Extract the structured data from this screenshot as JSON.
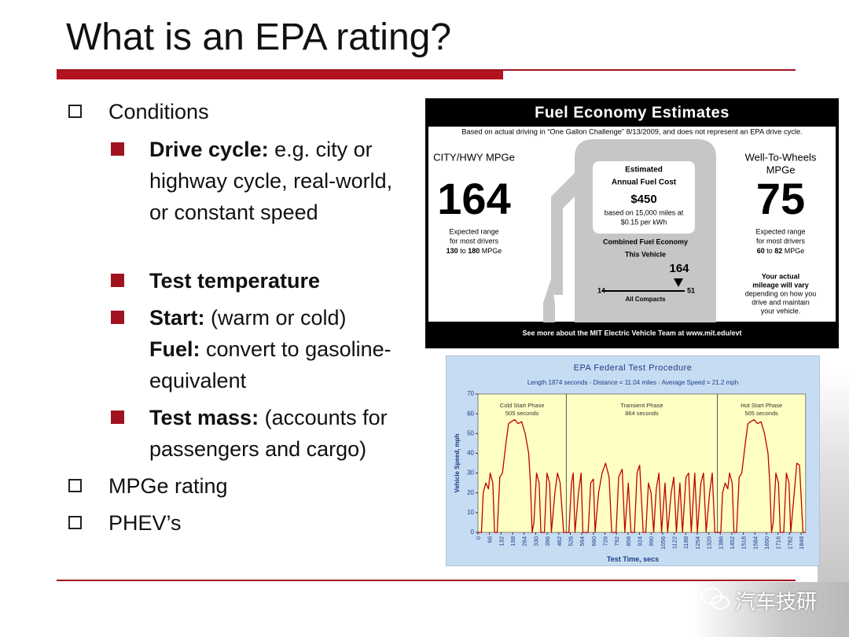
{
  "slide": {
    "title": "What is an EPA rating?",
    "bullets": [
      {
        "text": "Conditions",
        "sub": [
          {
            "bold": "Drive cycle:",
            "text": "e.g. city or highway cycle, real-world, or constant speed"
          },
          {
            "bold": "Test temperature"
          },
          {
            "bold": "Start:",
            "text": "(warm or cold)",
            "bold2": "Fuel:",
            "text2": "convert to gasoline-equivalent"
          },
          {
            "bold": "Test mass:",
            "text": "(accounts for passengers and cargo)"
          }
        ]
      },
      {
        "text": "MPGe rating"
      },
      {
        "text": "PHEV’s"
      }
    ],
    "watermark": "汽车技研"
  },
  "label": {
    "title": "Fuel Economy Estimates",
    "subtitle": "Based on actual driving in “One Gallon Challenge” 8/13/2009, and does not represent an EPA drive cycle.",
    "left": {
      "heading": "CITY/HWY MPGe",
      "value": 164,
      "range_lines": [
        "Expected range",
        "for most drivers"
      ],
      "range_low": 130,
      "range_to": "to",
      "range_high": 180,
      "range_unit": "MPGe"
    },
    "center": {
      "lines": [
        "Estimated",
        "Annual Fuel Cost"
      ],
      "cost": "$450",
      "basis": [
        "based on 15,000 miles at",
        "$0.15 per kWh"
      ],
      "combined": "Combined Fuel Economy",
      "this_vehicle": "This Vehicle",
      "vehicle_value": 164,
      "scale_low": 14,
      "scale_high": 51,
      "scale_label": "All Compacts"
    },
    "right": {
      "heading": [
        "Well-To-Wheels",
        "MPGe"
      ],
      "value": 75,
      "range_lines": [
        "Expected range",
        "for most drivers"
      ],
      "range_low": 60,
      "range_to": "to",
      "range_high": 82,
      "range_unit": "MPGe",
      "note": [
        "Your actual",
        "mileage will vary",
        "depending on how you",
        "drive and maintain",
        "your vehicle."
      ]
    },
    "footer": "See more about the MIT Electric Vehicle Team at www.mit.edu/evt"
  },
  "chart_data": {
    "type": "line",
    "title": "EPA Federal Test Procedure",
    "subtitle": "Length 1874 seconds - Distance = 11.04 miles - Average Speed = 21.2 mph",
    "x_label": "Test Time, secs",
    "y_label": "Vehicle Speed, mph",
    "phases": [
      {
        "name": "Cold Start Phase",
        "duration": "505 seconds"
      },
      {
        "name": "Transient Phase",
        "duration": "864 seconds"
      },
      {
        "name": "Hot Start Phase",
        "duration": "505 seconds"
      }
    ],
    "phase_bounds": [
      505,
      1369
    ],
    "x": [
      0,
      20,
      30,
      45,
      60,
      70,
      85,
      95,
      110,
      125,
      140,
      160,
      175,
      190,
      210,
      230,
      250,
      270,
      290,
      300,
      310,
      320,
      335,
      350,
      360,
      380,
      395,
      410,
      420,
      440,
      455,
      470,
      490,
      505,
      520,
      535,
      545,
      555,
      575,
      590,
      600,
      630,
      645,
      660,
      670,
      690,
      710,
      730,
      750,
      765,
      790,
      805,
      825,
      840,
      860,
      875,
      895,
      910,
      925,
      945,
      960,
      975,
      990,
      1005,
      1020,
      1035,
      1050,
      1070,
      1085,
      1105,
      1120,
      1135,
      1155,
      1170,
      1190,
      1205,
      1220,
      1240,
      1255,
      1275,
      1290,
      1305,
      1325,
      1340,
      1355,
      1369,
      1389,
      1399,
      1414,
      1429,
      1439,
      1454,
      1464,
      1479,
      1494,
      1509,
      1529,
      1544,
      1559,
      1579,
      1599,
      1619,
      1639,
      1659,
      1669,
      1679,
      1689,
      1704,
      1719,
      1729,
      1749,
      1764,
      1779,
      1789,
      1809,
      1824,
      1839,
      1859,
      1874
    ],
    "series": [
      {
        "name": "Speed",
        "color": "#c00000",
        "values": [
          0,
          0,
          20,
          25,
          22,
          30,
          25,
          0,
          0,
          28,
          30,
          45,
          55,
          56,
          57,
          55,
          56,
          50,
          40,
          25,
          0,
          5,
          30,
          25,
          0,
          0,
          30,
          25,
          0,
          20,
          30,
          25,
          0,
          0,
          0,
          25,
          30,
          0,
          20,
          30,
          0,
          0,
          25,
          27,
          0,
          20,
          30,
          35,
          28,
          0,
          0,
          28,
          32,
          0,
          25,
          0,
          0,
          30,
          34,
          0,
          0,
          25,
          20,
          0,
          22,
          30,
          0,
          25,
          0,
          20,
          28,
          0,
          25,
          0,
          28,
          30,
          0,
          30,
          0,
          25,
          30,
          0,
          20,
          30,
          0,
          0,
          0,
          20,
          25,
          22,
          30,
          25,
          0,
          0,
          28,
          30,
          45,
          55,
          56,
          57,
          55,
          56,
          50,
          40,
          25,
          0,
          5,
          30,
          25,
          0,
          0,
          30,
          25,
          0,
          20,
          35,
          34,
          0,
          0
        ]
      }
    ],
    "xlim": [
      0,
      1874
    ],
    "ylim": [
      0,
      70
    ],
    "xticks": [
      0,
      66,
      132,
      198,
      264,
      330,
      396,
      462,
      528,
      594,
      660,
      726,
      792,
      858,
      924,
      990,
      1056,
      1122,
      1188,
      1254,
      1320,
      1386,
      1452,
      1518,
      1584,
      1650,
      1716,
      1782,
      1848
    ],
    "yticks": [
      0,
      10,
      20,
      30,
      40,
      50,
      60,
      70
    ],
    "grid": false
  }
}
